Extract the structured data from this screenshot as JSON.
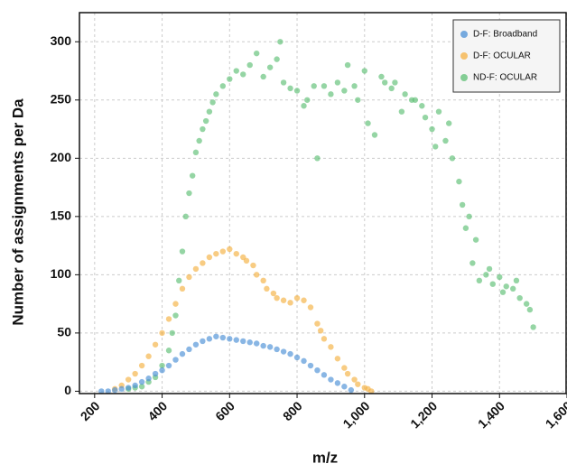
{
  "chart_data": {
    "type": "scatter",
    "x_label": "m/z",
    "y_label": "Number of assignments per Da",
    "xlim": [
      155,
      1600
    ],
    "ylim": [
      -2,
      325
    ],
    "xticks": [
      200,
      400,
      600,
      800,
      {
        "value": 1000,
        "label": "1,000"
      },
      {
        "value": 1200,
        "label": "1,200"
      },
      {
        "value": 1400,
        "label": "1,400"
      },
      {
        "value": 1600,
        "label": "1,600"
      }
    ],
    "yticks": [
      0,
      50,
      100,
      150,
      200,
      250,
      300
    ],
    "grid": true,
    "legend": "top-right",
    "series": [
      {
        "name": "ND-F: OCULAR",
        "color": "#5cbf73",
        "x": [
          300,
          320,
          340,
          360,
          380,
          400,
          420,
          430,
          440,
          450,
          460,
          470,
          480,
          490,
          500,
          510,
          520,
          530,
          540,
          550,
          560,
          580,
          600,
          620,
          640,
          660,
          680,
          700,
          720,
          740,
          750,
          760,
          780,
          800,
          820,
          830,
          850,
          860,
          880,
          900,
          920,
          940,
          950,
          970,
          980,
          1000,
          1010,
          1030,
          1050,
          1060,
          1080,
          1090,
          1110,
          1120,
          1140,
          1150,
          1170,
          1180,
          1200,
          1210,
          1220,
          1240,
          1250,
          1260,
          1280,
          1290,
          1300,
          1310,
          1320,
          1330,
          1340,
          1360,
          1370,
          1380,
          1400,
          1410,
          1420,
          1440,
          1450,
          1460,
          1480,
          1490,
          1500
        ],
        "values": [
          2,
          3,
          4,
          8,
          12,
          22,
          35,
          50,
          65,
          95,
          120,
          150,
          170,
          185,
          205,
          215,
          225,
          232,
          240,
          248,
          255,
          262,
          268,
          275,
          272,
          280,
          290,
          270,
          278,
          285,
          300,
          265,
          260,
          258,
          245,
          250,
          262,
          200,
          262,
          255,
          265,
          258,
          280,
          262,
          250,
          275,
          230,
          220,
          270,
          265,
          260,
          265,
          240,
          255,
          250,
          250,
          245,
          235,
          225,
          210,
          240,
          215,
          230,
          200,
          180,
          160,
          140,
          150,
          110,
          130,
          95,
          100,
          105,
          92,
          98,
          85,
          90,
          88,
          95,
          80,
          75,
          70,
          55
        ]
      },
      {
        "name": "D-F: OCULAR",
        "color": "#f5b041",
        "x": [
          260,
          280,
          300,
          320,
          340,
          360,
          380,
          400,
          420,
          440,
          460,
          480,
          500,
          520,
          540,
          560,
          580,
          600,
          620,
          640,
          650,
          670,
          680,
          700,
          710,
          730,
          740,
          760,
          780,
          800,
          820,
          840,
          860,
          870,
          880,
          900,
          920,
          940,
          950,
          970,
          980,
          1000,
          1010,
          1020
        ],
        "values": [
          2,
          5,
          10,
          15,
          22,
          30,
          40,
          50,
          62,
          75,
          88,
          98,
          105,
          110,
          115,
          118,
          120,
          122,
          118,
          115,
          112,
          108,
          100,
          95,
          88,
          84,
          80,
          78,
          76,
          80,
          78,
          72,
          58,
          52,
          45,
          38,
          28,
          20,
          15,
          10,
          6,
          3,
          2,
          0
        ]
      },
      {
        "name": "D-F: Broadband",
        "color": "#4a8fd6",
        "x": [
          220,
          240,
          260,
          280,
          300,
          320,
          340,
          360,
          380,
          400,
          420,
          440,
          460,
          480,
          500,
          520,
          540,
          560,
          580,
          600,
          620,
          640,
          660,
          680,
          700,
          720,
          740,
          760,
          780,
          800,
          820,
          840,
          860,
          880,
          900,
          920,
          940,
          960
        ],
        "values": [
          0,
          0,
          1,
          2,
          3,
          5,
          8,
          11,
          15,
          18,
          22,
          27,
          32,
          36,
          40,
          43,
          45,
          47,
          46,
          45,
          44,
          43,
          42,
          41,
          39,
          38,
          36,
          34,
          32,
          29,
          26,
          22,
          18,
          14,
          10,
          7,
          4,
          1
        ]
      }
    ]
  }
}
